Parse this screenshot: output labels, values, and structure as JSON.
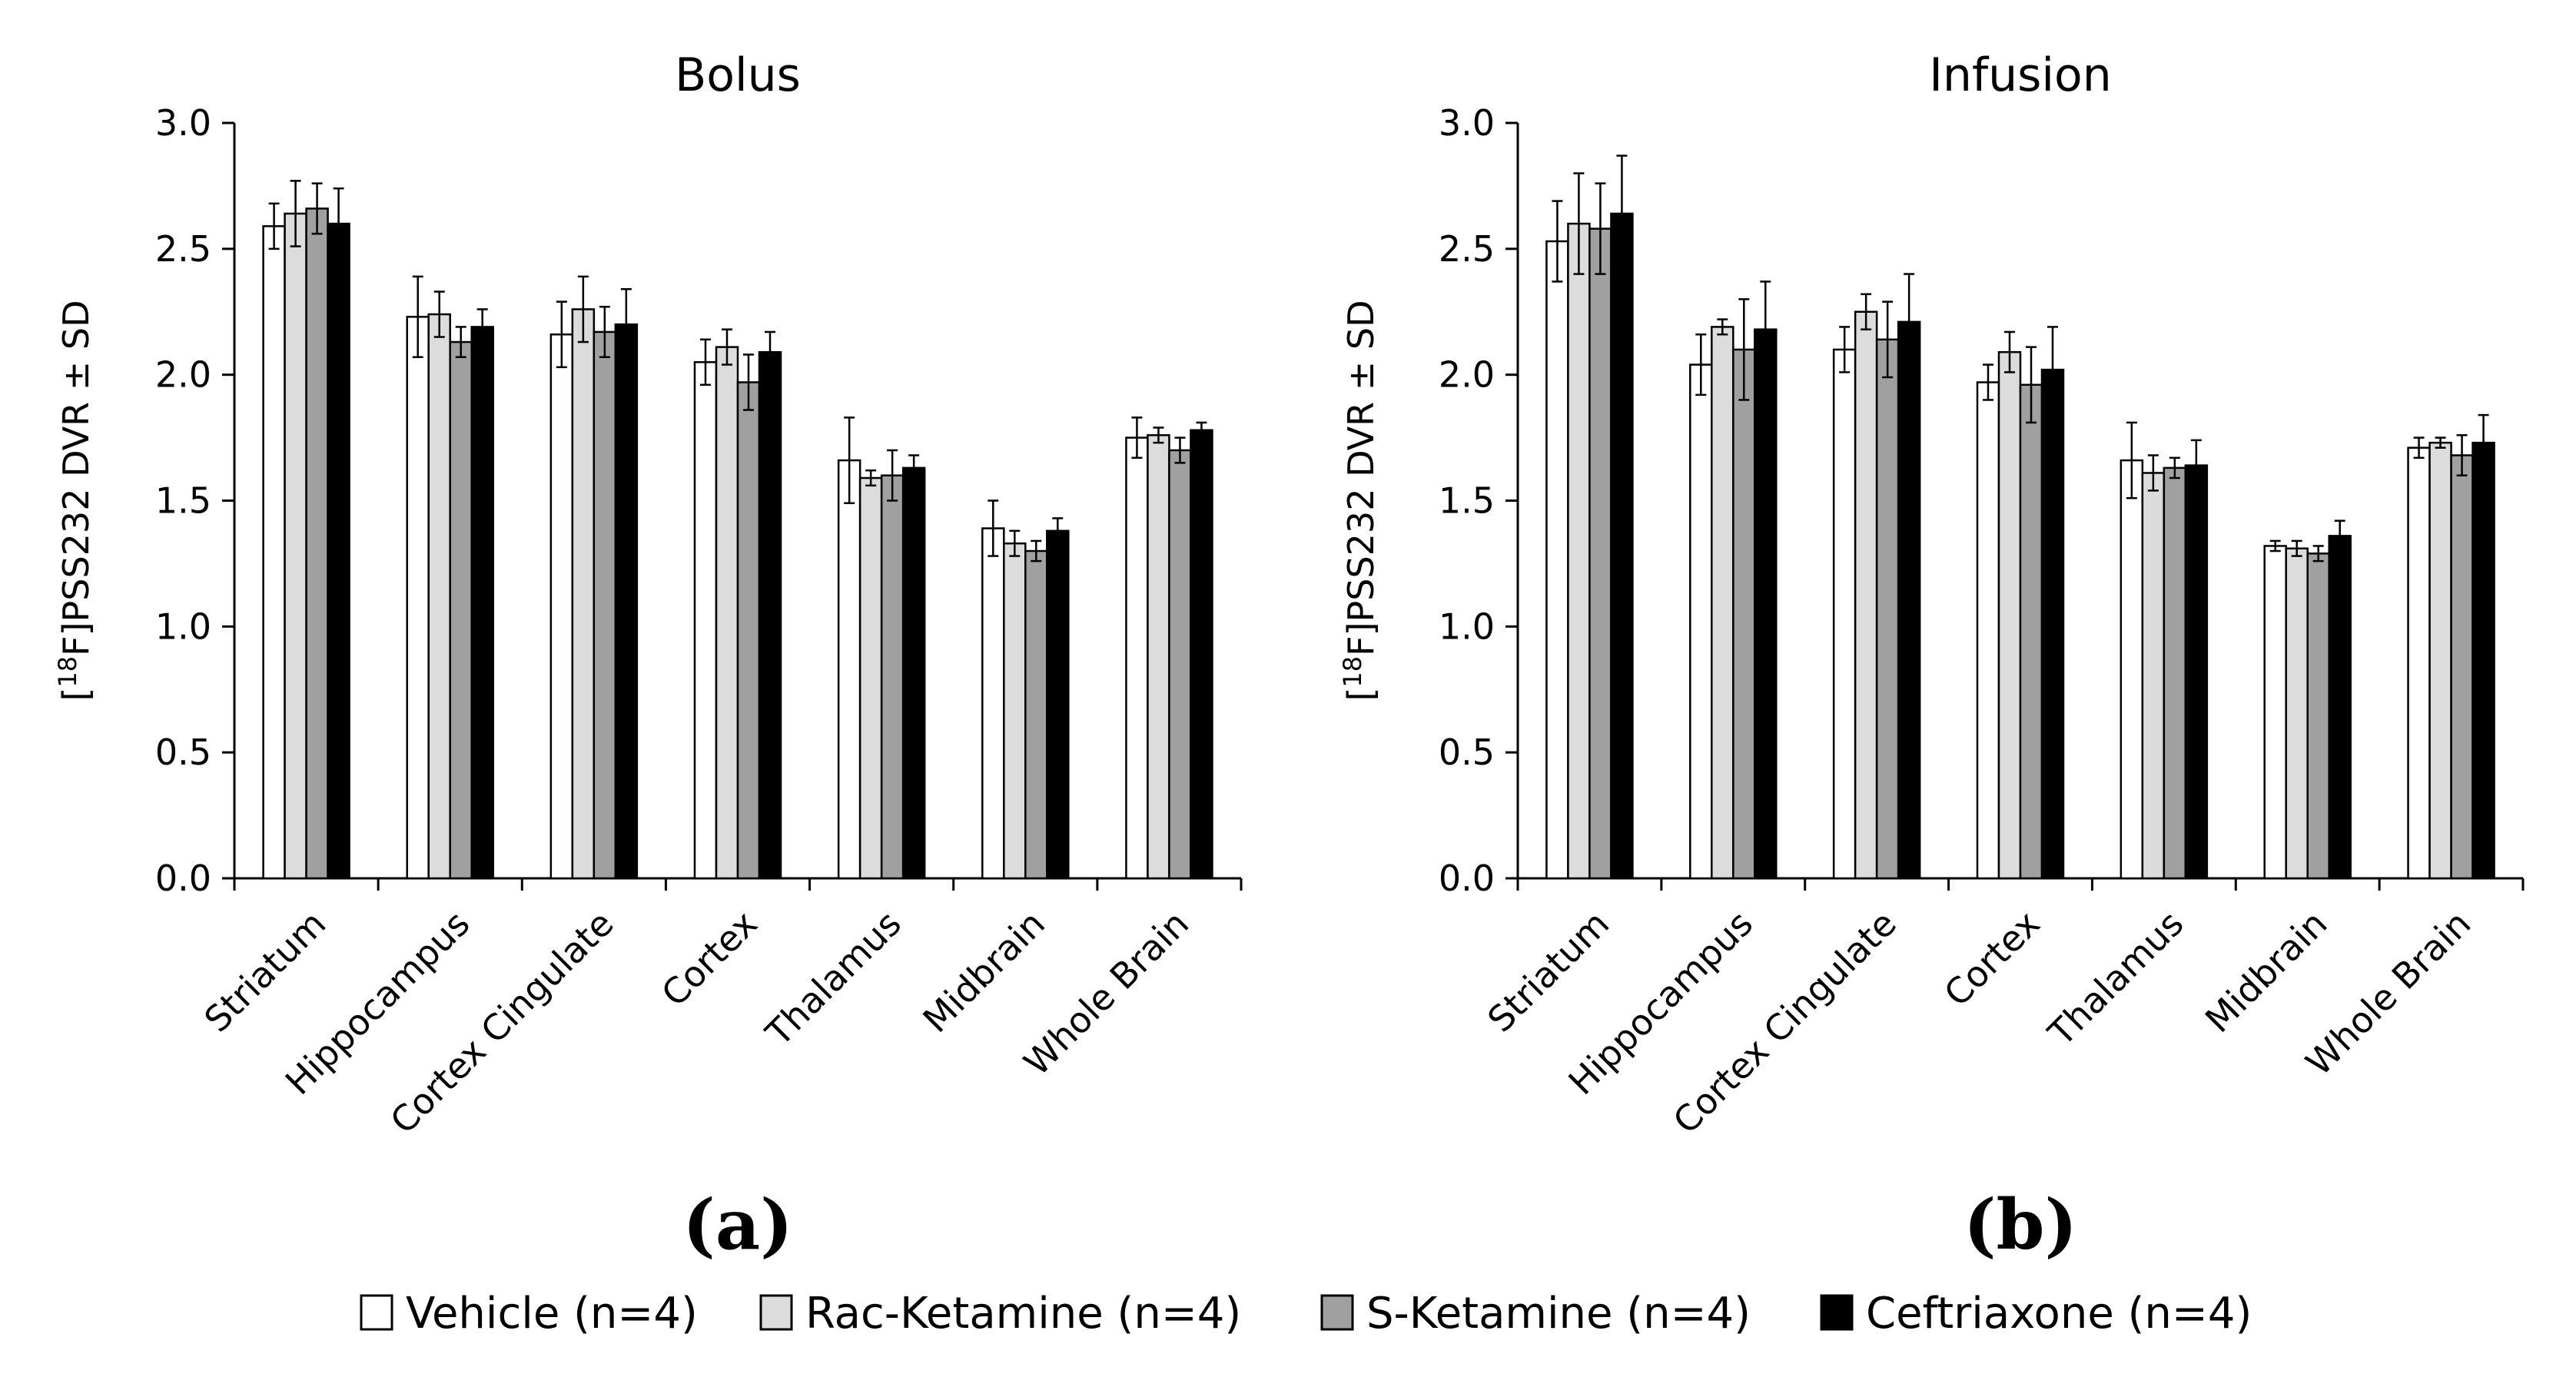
{
  "chart_data": [
    {
      "type": "bar",
      "title": "Bolus",
      "panel_label": "(a)",
      "ylabel_pre": "[",
      "ylabel_sup": "18",
      "ylabel_post": "F]PSS232 DVR ± SD",
      "ylim": [
        0,
        3.0
      ],
      "yticks": [
        "0.0",
        "0.5",
        "1.0",
        "1.5",
        "2.0",
        "2.5",
        "3.0"
      ],
      "categories": [
        "Striatum",
        "Hippocampus",
        "Cortex Cingulate",
        "Cortex",
        "Thalamus",
        "Midbrain",
        "Whole Brain"
      ],
      "series": [
        {
          "name": "Vehicle (n=4)",
          "color": "#ffffff",
          "values": [
            2.59,
            2.23,
            2.16,
            2.05,
            1.66,
            1.39,
            1.75
          ],
          "errors": [
            0.09,
            0.16,
            0.13,
            0.09,
            0.17,
            0.11,
            0.08
          ]
        },
        {
          "name": "Rac-Ketamine (n=4)",
          "color": "#dcdcdc",
          "values": [
            2.64,
            2.24,
            2.26,
            2.11,
            1.59,
            1.33,
            1.76
          ],
          "errors": [
            0.13,
            0.09,
            0.13,
            0.07,
            0.03,
            0.05,
            0.03
          ]
        },
        {
          "name": "S-Ketamine (n=4)",
          "color": "#a0a0a0",
          "values": [
            2.66,
            2.13,
            2.17,
            1.97,
            1.6,
            1.3,
            1.7
          ],
          "errors": [
            0.1,
            0.06,
            0.1,
            0.11,
            0.1,
            0.04,
            0.05
          ]
        },
        {
          "name": "Ceftriaxone (n=4)",
          "color": "#000000",
          "values": [
            2.6,
            2.19,
            2.2,
            2.09,
            1.63,
            1.38,
            1.78
          ],
          "errors": [
            0.14,
            0.07,
            0.14,
            0.08,
            0.05,
            0.05,
            0.03
          ]
        }
      ]
    },
    {
      "type": "bar",
      "title": "Infusion",
      "panel_label": "(b)",
      "ylabel_pre": "[",
      "ylabel_sup": "18",
      "ylabel_post": "F]PSS232 DVR ± SD",
      "ylim": [
        0,
        3.0
      ],
      "yticks": [
        "0.0",
        "0.5",
        "1.0",
        "1.5",
        "2.0",
        "2.5",
        "3.0"
      ],
      "categories": [
        "Striatum",
        "Hippocampus",
        "Cortex Cingulate",
        "Cortex",
        "Thalamus",
        "Midbrain",
        "Whole Brain"
      ],
      "series": [
        {
          "name": "Vehicle (n=4)",
          "color": "#ffffff",
          "values": [
            2.53,
            2.04,
            2.1,
            1.97,
            1.66,
            1.32,
            1.71
          ],
          "errors": [
            0.16,
            0.12,
            0.09,
            0.07,
            0.15,
            0.02,
            0.04
          ]
        },
        {
          "name": "Rac-Ketamine (n=4)",
          "color": "#dcdcdc",
          "values": [
            2.6,
            2.19,
            2.25,
            2.09,
            1.61,
            1.31,
            1.73
          ],
          "errors": [
            0.2,
            0.03,
            0.07,
            0.08,
            0.07,
            0.03,
            0.02
          ]
        },
        {
          "name": "S-Ketamine (n=4)",
          "color": "#a0a0a0",
          "values": [
            2.58,
            2.1,
            2.14,
            1.96,
            1.63,
            1.29,
            1.68
          ],
          "errors": [
            0.18,
            0.2,
            0.15,
            0.15,
            0.04,
            0.03,
            0.08
          ]
        },
        {
          "name": "Ceftriaxone (n=4)",
          "color": "#000000",
          "values": [
            2.64,
            2.18,
            2.21,
            2.02,
            1.64,
            1.36,
            1.73
          ],
          "errors": [
            0.23,
            0.19,
            0.19,
            0.17,
            0.1,
            0.06,
            0.11
          ]
        }
      ]
    }
  ],
  "legend": [
    {
      "label": "Vehicle (n=4)",
      "color": "#ffffff"
    },
    {
      "label": "Rac-Ketamine (n=4)",
      "color": "#dcdcdc"
    },
    {
      "label": "S-Ketamine (n=4)",
      "color": "#a0a0a0"
    },
    {
      "label": "Ceftriaxone (n=4)",
      "color": "#000000"
    }
  ]
}
